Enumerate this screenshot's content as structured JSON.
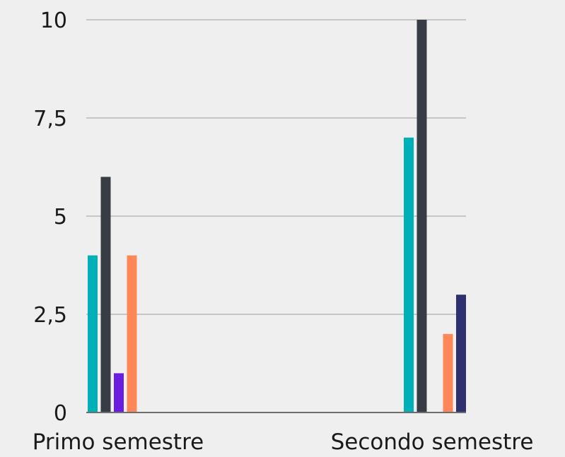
{
  "chart_data": {
    "type": "bar",
    "categories": [
      "Primo semestre",
      "Secondo semestre"
    ],
    "y_ticks": [
      "0",
      "2,5",
      "5",
      "7,5",
      "10"
    ],
    "ylim": [
      0,
      10
    ],
    "grid": true,
    "legend": "none",
    "series": [
      {
        "color": "#00b0b9",
        "values": [
          4,
          7
        ]
      },
      {
        "color": "#383d45",
        "values": [
          6,
          10
        ]
      },
      {
        "color": "#6a1de0",
        "values": [
          1,
          0
        ]
      },
      {
        "color": "#ff8757",
        "values": [
          4,
          2
        ]
      },
      {
        "color": "#2e3070",
        "values": [
          0,
          3
        ]
      }
    ]
  }
}
